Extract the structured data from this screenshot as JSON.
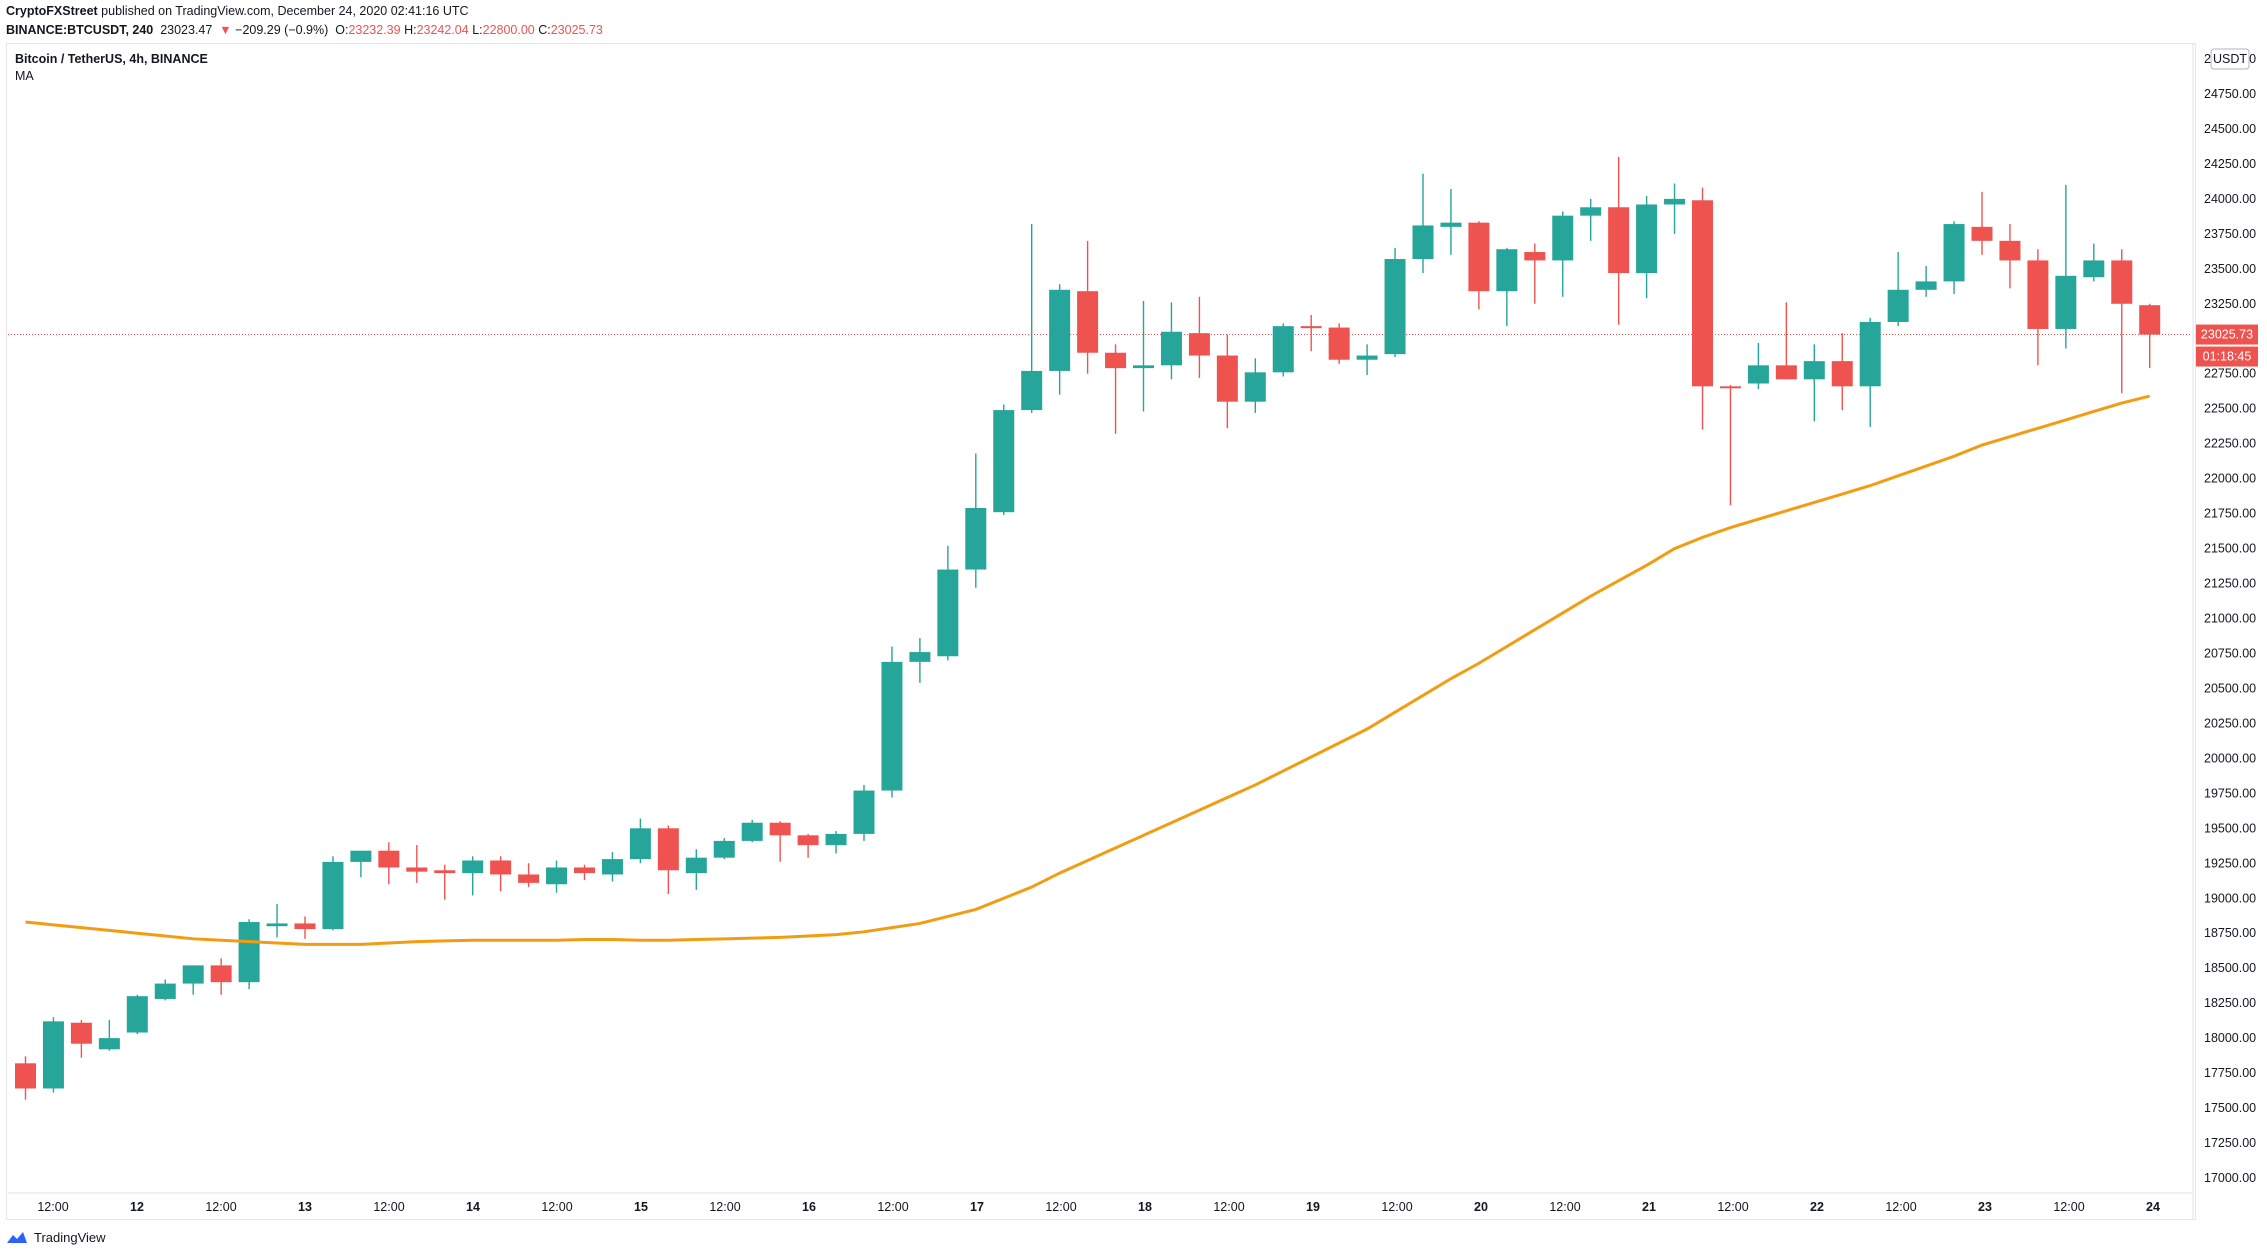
{
  "header": {
    "author": "CryptoFXStreet",
    "published": "published on TradingView.com, December 24, 2020 02:41:16 UTC",
    "symbol": "BINANCE:BTCUSDT, 240",
    "last_price": "23023.47",
    "change_arrow": "▼",
    "change": "−209.29 (−0.9%)",
    "o_label": "O:",
    "o_val": "23232.39",
    "h_label": "H:",
    "h_val": "23242.04",
    "l_label": "L:",
    "l_val": "22800.00",
    "c_label": "C:",
    "c_val": "23025.73"
  },
  "pane": {
    "title": "Bitcoin / TetherUS, 4h, BINANCE",
    "indicator": "MA"
  },
  "price_axis": {
    "currency": "USDT",
    "current_price_label": "23025.73",
    "countdown_label": "01:18:45",
    "ticks": [
      "25000.00",
      "24750.00",
      "24500.00",
      "24250.00",
      "24000.00",
      "23750.00",
      "23500.00",
      "23250.00",
      "23000.00",
      "22750.00",
      "22500.00",
      "22250.00",
      "22000.00",
      "21750.00",
      "21500.00",
      "21250.00",
      "21000.00",
      "20750.00",
      "20500.00",
      "20250.00",
      "20000.00",
      "19750.00",
      "19500.00",
      "19250.00",
      "19000.00",
      "18750.00",
      "18500.00",
      "18250.00",
      "18000.00",
      "17750.00",
      "17500.00",
      "17250.00",
      "17000.00"
    ]
  },
  "time_axis": {
    "ticks": [
      "12:00",
      "12",
      "12:00",
      "13",
      "12:00",
      "14",
      "12:00",
      "15",
      "12:00",
      "16",
      "12:00",
      "17",
      "12:00",
      "18",
      "12:00",
      "19",
      "12:00",
      "20",
      "12:00",
      "21",
      "12:00",
      "22",
      "12:00",
      "23",
      "12:00",
      "24"
    ]
  },
  "footer": {
    "brand": "TradingView"
  },
  "colors": {
    "up": "#26a69a",
    "down": "#ef5350",
    "ma": "#f39c12",
    "grid": "#f0f3fa"
  },
  "chart_data": {
    "type": "candlestick",
    "title": "Bitcoin / TetherUS, 4h, BINANCE",
    "interval": "4h",
    "ylim": [
      17000,
      25000
    ],
    "candles": [
      {
        "o": 17820,
        "h": 17870,
        "l": 17560,
        "c": 17640
      },
      {
        "o": 17640,
        "h": 18150,
        "l": 17610,
        "c": 18120
      },
      {
        "o": 18110,
        "h": 18130,
        "l": 17860,
        "c": 17960
      },
      {
        "o": 17920,
        "h": 18130,
        "l": 17910,
        "c": 18000
      },
      {
        "o": 18040,
        "h": 18310,
        "l": 18030,
        "c": 18300
      },
      {
        "o": 18280,
        "h": 18420,
        "l": 18270,
        "c": 18390
      },
      {
        "o": 18390,
        "h": 18520,
        "l": 18310,
        "c": 18520
      },
      {
        "o": 18520,
        "h": 18570,
        "l": 18310,
        "c": 18400
      },
      {
        "o": 18400,
        "h": 18850,
        "l": 18350,
        "c": 18830
      },
      {
        "o": 18800,
        "h": 18960,
        "l": 18720,
        "c": 18820
      },
      {
        "o": 18820,
        "h": 18870,
        "l": 18710,
        "c": 18780
      },
      {
        "o": 18780,
        "h": 19300,
        "l": 18770,
        "c": 19260
      },
      {
        "o": 19260,
        "h": 19340,
        "l": 19150,
        "c": 19340
      },
      {
        "o": 19340,
        "h": 19400,
        "l": 19100,
        "c": 19220
      },
      {
        "o": 19220,
        "h": 19380,
        "l": 19110,
        "c": 19190
      },
      {
        "o": 19200,
        "h": 19240,
        "l": 18990,
        "c": 19180
      },
      {
        "o": 19180,
        "h": 19300,
        "l": 19020,
        "c": 19270
      },
      {
        "o": 19270,
        "h": 19300,
        "l": 19050,
        "c": 19170
      },
      {
        "o": 19170,
        "h": 19250,
        "l": 19080,
        "c": 19110
      },
      {
        "o": 19100,
        "h": 19270,
        "l": 19040,
        "c": 19220
      },
      {
        "o": 19220,
        "h": 19240,
        "l": 19130,
        "c": 19180
      },
      {
        "o": 19170,
        "h": 19330,
        "l": 19120,
        "c": 19280
      },
      {
        "o": 19280,
        "h": 19570,
        "l": 19250,
        "c": 19500
      },
      {
        "o": 19500,
        "h": 19520,
        "l": 19030,
        "c": 19200
      },
      {
        "o": 19180,
        "h": 19350,
        "l": 19060,
        "c": 19290
      },
      {
        "o": 19290,
        "h": 19430,
        "l": 19280,
        "c": 19410
      },
      {
        "o": 19410,
        "h": 19560,
        "l": 19400,
        "c": 19540
      },
      {
        "o": 19540,
        "h": 19550,
        "l": 19260,
        "c": 19450
      },
      {
        "o": 19450,
        "h": 19460,
        "l": 19290,
        "c": 19380
      },
      {
        "o": 19380,
        "h": 19480,
        "l": 19320,
        "c": 19460
      },
      {
        "o": 19460,
        "h": 19810,
        "l": 19410,
        "c": 19770
      },
      {
        "o": 19770,
        "h": 20800,
        "l": 19720,
        "c": 20690
      },
      {
        "o": 20690,
        "h": 20860,
        "l": 20540,
        "c": 20760
      },
      {
        "o": 20730,
        "h": 21520,
        "l": 20700,
        "c": 21350
      },
      {
        "o": 21350,
        "h": 22180,
        "l": 21220,
        "c": 21790
      },
      {
        "o": 21760,
        "h": 22530,
        "l": 21740,
        "c": 22490
      },
      {
        "o": 22490,
        "h": 23820,
        "l": 22470,
        "c": 22770
      },
      {
        "o": 22770,
        "h": 23390,
        "l": 22600,
        "c": 23350
      },
      {
        "o": 23340,
        "h": 23700,
        "l": 22750,
        "c": 22900
      },
      {
        "o": 22900,
        "h": 22960,
        "l": 22320,
        "c": 22790
      },
      {
        "o": 22790,
        "h": 23270,
        "l": 22480,
        "c": 22810
      },
      {
        "o": 22810,
        "h": 23260,
        "l": 22710,
        "c": 23050
      },
      {
        "o": 23040,
        "h": 23300,
        "l": 22720,
        "c": 22880
      },
      {
        "o": 22880,
        "h": 23030,
        "l": 22360,
        "c": 22550
      },
      {
        "o": 22550,
        "h": 22860,
        "l": 22470,
        "c": 22760
      },
      {
        "o": 22760,
        "h": 23110,
        "l": 22730,
        "c": 23090
      },
      {
        "o": 23090,
        "h": 23170,
        "l": 22910,
        "c": 23080
      },
      {
        "o": 23080,
        "h": 23110,
        "l": 22820,
        "c": 22850
      },
      {
        "o": 22850,
        "h": 22960,
        "l": 22740,
        "c": 22880
      },
      {
        "o": 22890,
        "h": 23650,
        "l": 22870,
        "c": 23570
      },
      {
        "o": 23570,
        "h": 24180,
        "l": 23470,
        "c": 23810
      },
      {
        "o": 23800,
        "h": 24070,
        "l": 23600,
        "c": 23830
      },
      {
        "o": 23830,
        "h": 23840,
        "l": 23210,
        "c": 23340
      },
      {
        "o": 23340,
        "h": 23650,
        "l": 23090,
        "c": 23640
      },
      {
        "o": 23620,
        "h": 23680,
        "l": 23250,
        "c": 23560
      },
      {
        "o": 23560,
        "h": 23910,
        "l": 23300,
        "c": 23880
      },
      {
        "o": 23880,
        "h": 24000,
        "l": 23700,
        "c": 23940
      },
      {
        "o": 23940,
        "h": 24300,
        "l": 23100,
        "c": 23470
      },
      {
        "o": 23470,
        "h": 24020,
        "l": 23290,
        "c": 23960
      },
      {
        "o": 23960,
        "h": 24110,
        "l": 23750,
        "c": 24000
      },
      {
        "o": 23990,
        "h": 24080,
        "l": 22350,
        "c": 22660
      },
      {
        "o": 22660,
        "h": 22670,
        "l": 21810,
        "c": 22650
      },
      {
        "o": 22680,
        "h": 22970,
        "l": 22640,
        "c": 22810
      },
      {
        "o": 22810,
        "h": 23260,
        "l": 22710,
        "c": 22710
      },
      {
        "o": 22710,
        "h": 22960,
        "l": 22410,
        "c": 22840
      },
      {
        "o": 22840,
        "h": 23040,
        "l": 22490,
        "c": 22660
      },
      {
        "o": 22660,
        "h": 23150,
        "l": 22370,
        "c": 23120
      },
      {
        "o": 23120,
        "h": 23620,
        "l": 23090,
        "c": 23350
      },
      {
        "o": 23350,
        "h": 23520,
        "l": 23300,
        "c": 23410
      },
      {
        "o": 23410,
        "h": 23840,
        "l": 23320,
        "c": 23820
      },
      {
        "o": 23800,
        "h": 24050,
        "l": 23600,
        "c": 23700
      },
      {
        "o": 23700,
        "h": 23820,
        "l": 23360,
        "c": 23560
      },
      {
        "o": 23560,
        "h": 23640,
        "l": 22810,
        "c": 23070
      },
      {
        "o": 23070,
        "h": 24100,
        "l": 22930,
        "c": 23450
      },
      {
        "o": 23440,
        "h": 23680,
        "l": 23410,
        "c": 23560
      },
      {
        "o": 23560,
        "h": 23640,
        "l": 22610,
        "c": 23250
      },
      {
        "o": 23240,
        "h": 23250,
        "l": 22790,
        "c": 23030
      }
    ],
    "ma": [
      18830,
      18810,
      18790,
      18770,
      18750,
      18730,
      18710,
      18700,
      18690,
      18680,
      18670,
      18670,
      18670,
      18680,
      18690,
      18695,
      18700,
      18700,
      18700,
      18700,
      18705,
      18705,
      18700,
      18700,
      18705,
      18710,
      18715,
      18720,
      18730,
      18740,
      18760,
      18790,
      18820,
      18870,
      18920,
      19000,
      19080,
      19180,
      19270,
      19360,
      19450,
      19540,
      19630,
      19720,
      19810,
      19910,
      20010,
      20110,
      20210,
      20330,
      20450,
      20570,
      20680,
      20800,
      20920,
      21040,
      21160,
      21270,
      21380,
      21500,
      21580,
      21650,
      21710,
      21770,
      21830,
      21890,
      21950,
      22020,
      22090,
      22160,
      22240,
      22300,
      22360,
      22420,
      22480,
      22540,
      22590
    ]
  }
}
